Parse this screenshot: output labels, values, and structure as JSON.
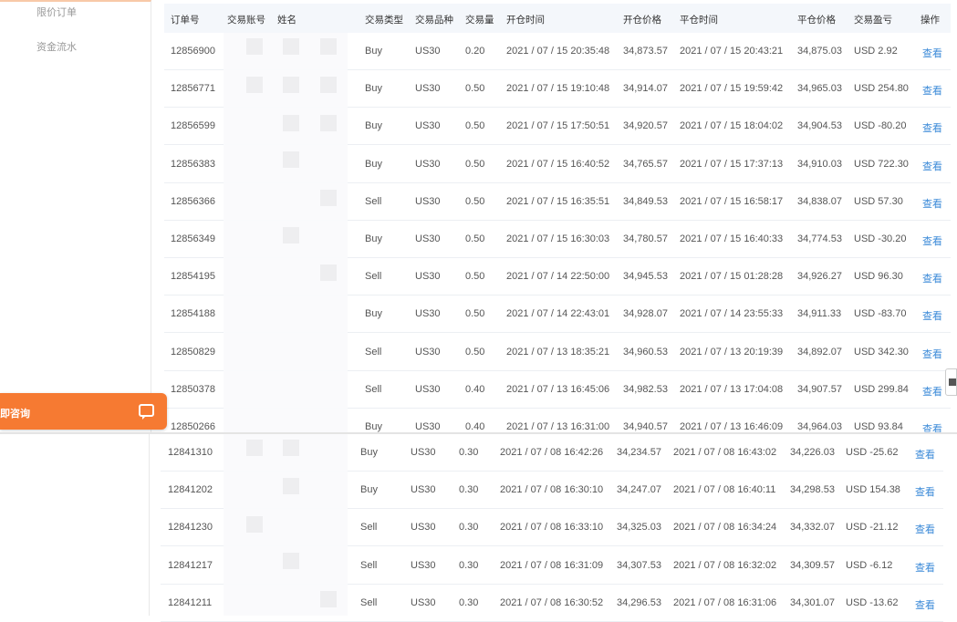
{
  "sidebar": {
    "items": [
      {
        "label": "限价订单"
      },
      {
        "label": "资金流水"
      }
    ]
  },
  "chat": {
    "label": "即咨询",
    "icon": "chat-bubble-icon",
    "color": "#f67a32"
  },
  "table": {
    "headers": [
      "订单号",
      "交易账号",
      "姓名",
      "交易类型",
      "交易品种",
      "交易量",
      "开仓时间",
      "开仓价格",
      "平仓时间",
      "平仓价格",
      "交易盈亏",
      "操作"
    ],
    "view_label": "查看",
    "rows": [
      [
        "12856900",
        "Buy",
        "US30",
        "0.20",
        "2021 / 07 / 15 20:35:48",
        "34,873.57",
        "2021 / 07 / 15 20:43:21",
        "34,875.03",
        "USD 2.92"
      ],
      [
        "12856771",
        "Buy",
        "US30",
        "0.50",
        "2021 / 07 / 15 19:10:48",
        "34,914.07",
        "2021 / 07 / 15 19:59:42",
        "34,965.03",
        "USD 254.80"
      ],
      [
        "12856599",
        "Buy",
        "US30",
        "0.50",
        "2021 / 07 / 15 17:50:51",
        "34,920.57",
        "2021 / 07 / 15 18:04:02",
        "34,904.53",
        "USD -80.20"
      ],
      [
        "12856383",
        "Buy",
        "US30",
        "0.50",
        "2021 / 07 / 15 16:40:52",
        "34,765.57",
        "2021 / 07 / 15 17:37:13",
        "34,910.03",
        "USD 722.30"
      ],
      [
        "12856366",
        "Sell",
        "US30",
        "0.50",
        "2021 / 07 / 15 16:35:51",
        "34,849.53",
        "2021 / 07 / 15 16:58:17",
        "34,838.07",
        "USD 57.30"
      ],
      [
        "12856349",
        "Buy",
        "US30",
        "0.50",
        "2021 / 07 / 15 16:30:03",
        "34,780.57",
        "2021 / 07 / 15 16:40:33",
        "34,774.53",
        "USD -30.20"
      ],
      [
        "12854195",
        "Sell",
        "US30",
        "0.50",
        "2021 / 07 / 14 22:50:00",
        "34,945.53",
        "2021 / 07 / 15 01:28:28",
        "34,926.27",
        "USD 96.30"
      ],
      [
        "12854188",
        "Buy",
        "US30",
        "0.50",
        "2021 / 07 / 14 22:43:01",
        "34,928.07",
        "2021 / 07 / 14 23:55:33",
        "34,911.33",
        "USD -83.70"
      ],
      [
        "12850829",
        "Sell",
        "US30",
        "0.50",
        "2021 / 07 / 13 18:35:21",
        "34,960.53",
        "2021 / 07 / 13 20:19:39",
        "34,892.07",
        "USD 342.30"
      ],
      [
        "12850378",
        "Sell",
        "US30",
        "0.40",
        "2021 / 07 / 13 16:45:06",
        "34,982.53",
        "2021 / 07 / 13 17:04:08",
        "34,907.57",
        "USD 299.84"
      ],
      [
        "12850266",
        "Buy",
        "US30",
        "0.40",
        "2021 / 07 / 13 16:31:00",
        "34,940.57",
        "2021 / 07 / 13 16:46:09",
        "34,964.03",
        "USD 93.84"
      ]
    ]
  },
  "table2": {
    "rows": [
      [
        "12841310",
        "Buy",
        "US30",
        "0.30",
        "2021 / 07 / 08 16:42:26",
        "34,234.57",
        "2021 / 07 / 08 16:43:02",
        "34,226.03",
        "USD -25.62"
      ],
      [
        "12841202",
        "Buy",
        "US30",
        "0.30",
        "2021 / 07 / 08 16:30:10",
        "34,247.07",
        "2021 / 07 / 08 16:40:11",
        "34,298.53",
        "USD 154.38"
      ],
      [
        "12841230",
        "Sell",
        "US30",
        "0.30",
        "2021 / 07 / 08 16:33:10",
        "34,325.03",
        "2021 / 07 / 08 16:34:24",
        "34,332.07",
        "USD -21.12"
      ],
      [
        "12841217",
        "Sell",
        "US30",
        "0.30",
        "2021 / 07 / 08 16:31:09",
        "34,307.53",
        "2021 / 07 / 08 16:32:02",
        "34,309.57",
        "USD -6.12"
      ],
      [
        "12841211",
        "Sell",
        "US30",
        "0.30",
        "2021 / 07 / 08 16:30:52",
        "34,296.53",
        "2021 / 07 / 08 16:31:06",
        "34,301.07",
        "USD -13.62"
      ]
    ]
  },
  "colors": {
    "link": "#3b8ad8",
    "header_bg": "#f4f7fb"
  }
}
